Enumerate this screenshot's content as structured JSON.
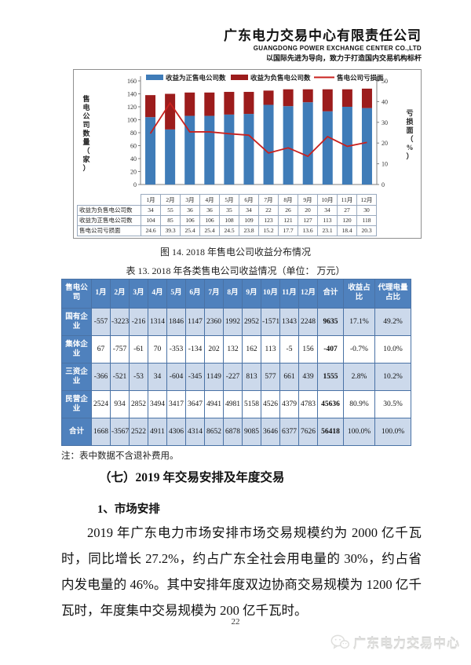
{
  "header": {
    "company_cn": "广东电力交易中心有限责任公司",
    "company_en": "GUANGDONG POWER EXCHANGE CENTER CO.,LTD",
    "slogan": "以国际先进为导向，致力于打造国内交易机构标杆"
  },
  "colors": {
    "bar_positive": "#3f7cb8",
    "bar_negative": "#9c1c1c",
    "loss_line": "#c9211e",
    "table_header_blue": "#4f81bd",
    "table_alt_row_blue": "#ccd9eb"
  },
  "chart_data": {
    "type": "bar",
    "subtype": "stacked-bars-with-right-axis-line",
    "title": "2018 年售电公司收益分布情况",
    "categories": [
      "1月",
      "2月",
      "3月",
      "4月",
      "5月",
      "6月",
      "7月",
      "8月",
      "9月",
      "10月",
      "11月",
      "12月"
    ],
    "series": [
      {
        "name": "收益为正售电公司数",
        "kind": "bar",
        "color": "#3f7cb8",
        "values": [
          104,
          85,
          106,
          106,
          108,
          109,
          123,
          121,
          127,
          113,
          120,
          118
        ]
      },
      {
        "name": "收益为负售电公司数",
        "kind": "bar",
        "color": "#9c1c1c",
        "values": [
          34,
          55,
          36,
          36,
          35,
          34,
          22,
          26,
          20,
          34,
          27,
          30
        ]
      },
      {
        "name": "售电公司亏损面",
        "kind": "line",
        "color": "#c9211e",
        "axis": "right",
        "values": [
          24.6,
          39.3,
          25.4,
          25.4,
          24.5,
          23.8,
          15.2,
          17.7,
          13.6,
          23.1,
          18.4,
          20.3
        ]
      }
    ],
    "table_order": [
      1,
      0,
      2
    ],
    "left_axis": {
      "label": "售电公司数量（家）",
      "min": 0,
      "max": 160,
      "step": 20
    },
    "right_axis": {
      "label": "亏损面（%）",
      "min": 0,
      "max": 50,
      "step": 10
    },
    "legend_position": "top",
    "grid": false
  },
  "figure": {
    "caption": "图 14. 2018 年售电公司收益分布情况"
  },
  "table13": {
    "title": "表 13. 2018 年各类售电公司收益情况（单位： 万元）",
    "col_headers": [
      "售电公司",
      "1月",
      "2月",
      "3月",
      "4月",
      "5月",
      "6月",
      "7月",
      "8月",
      "9月",
      "10月",
      "11月",
      "12月",
      "合计",
      "收益占比",
      "代理电量占比"
    ],
    "rows": [
      {
        "label": "国有企业",
        "values": [
          -557,
          -3223,
          -216,
          1314,
          1846,
          1147,
          2360,
          1992,
          2952,
          -1571,
          1343,
          2248
        ],
        "total": 9635,
        "income_share": "17.1%",
        "volume_share": "49.2%"
      },
      {
        "label": "集体企业",
        "values": [
          67,
          -757,
          -61,
          70,
          -353,
          -134,
          202,
          132,
          162,
          113,
          -5,
          156
        ],
        "total": -407,
        "income_share": "-0.7%",
        "volume_share": "10.0%"
      },
      {
        "label": "三资企业",
        "values": [
          -366,
          -521,
          -53,
          34,
          -604,
          -345,
          1149,
          -227,
          813,
          577,
          661,
          439
        ],
        "total": 1555,
        "income_share": "2.8%",
        "volume_share": "10.2%"
      },
      {
        "label": "民营企业",
        "values": [
          2524,
          934,
          2852,
          3494,
          3417,
          3647,
          4941,
          4981,
          5158,
          4526,
          4379,
          4783
        ],
        "total": 45636,
        "income_share": "80.9%",
        "volume_share": "30.5%"
      },
      {
        "label": "合计",
        "values": [
          1668,
          -3567,
          2522,
          4911,
          4306,
          4314,
          8652,
          6878,
          9085,
          3646,
          6377,
          7626
        ],
        "total": 56418,
        "income_share": "100.0%",
        "volume_share": "100.0%"
      }
    ]
  },
  "note": "注：表中数据不含退补费用。",
  "sections": {
    "heading1": "（七）2019 年交易安排及年度交易",
    "heading2": "1、市场安排",
    "paragraph": "2019 年广东电力市场安排市场交易规模约为 2000 亿千瓦时，同比增长 27.2%，约占广东全社会用电量的 30%，约占省内发电量的 46%。其中安排年度双边协商交易规模为 1200 亿千瓦时，年度集中交易规模为 200 亿千瓦时。"
  },
  "page_number": "22",
  "footer": {
    "watermark": "广东电力交易中心"
  }
}
